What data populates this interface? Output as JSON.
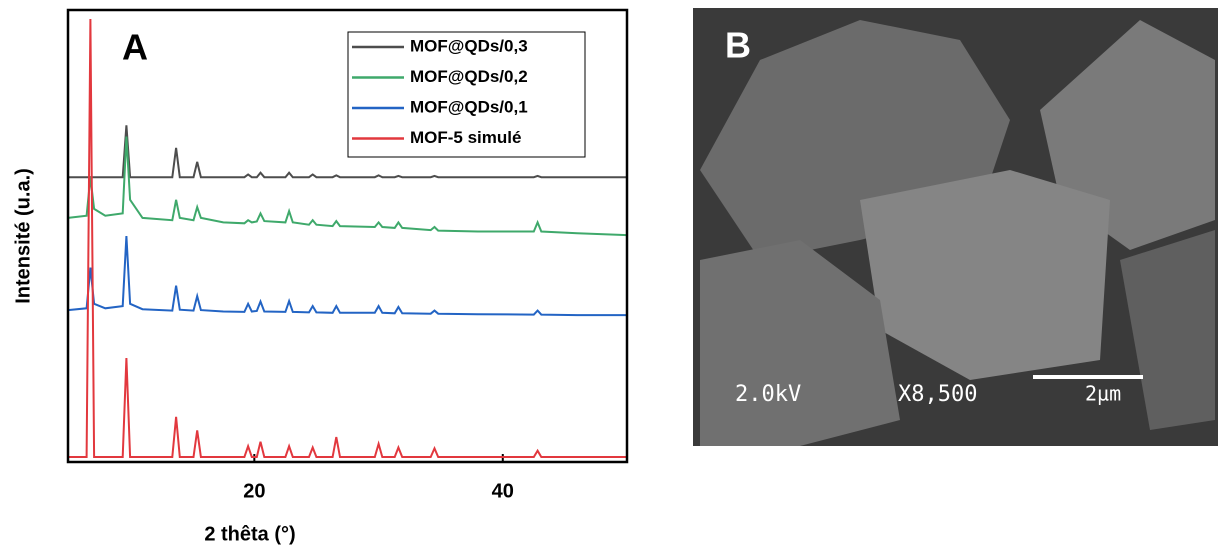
{
  "chart_data": {
    "type": "line",
    "annotation": "A",
    "xlabel": "2 thêta (°)",
    "ylabel": "Intensité (u.a.)",
    "xlim": [
      5,
      50
    ],
    "xticks": [
      20,
      40
    ],
    "ylim": [
      0,
      100
    ],
    "legend": "upper right",
    "x": [
      5,
      6.5,
      6.8,
      7.1,
      8,
      9.4,
      9.7,
      10,
      11,
      13.4,
      13.7,
      14,
      15.1,
      15.4,
      15.7,
      17.5,
      19.2,
      19.5,
      19.8,
      20.2,
      20.5,
      20.8,
      22.5,
      22.8,
      23.1,
      24.4,
      24.7,
      25,
      26.3,
      26.6,
      26.9,
      29.7,
      30,
      30.3,
      31.3,
      31.6,
      31.9,
      34.2,
      34.5,
      34.8,
      38,
      42.5,
      42.8,
      43.1,
      46,
      50
    ],
    "series": [
      {
        "name": "MOF@QDs/0,3",
        "color": "#4d4d4d",
        "values": [
          63,
          63,
          63,
          63,
          63,
          63,
          74.5,
          63,
          63,
          63,
          69.5,
          63,
          63,
          66.4,
          63,
          63,
          63,
          63.6,
          63,
          63,
          64,
          63,
          63,
          64,
          63,
          63,
          63.6,
          63,
          63,
          63.4,
          63,
          63,
          63.4,
          63,
          63,
          63.3,
          63,
          63,
          63.3,
          63,
          63,
          63,
          63.3,
          63,
          63,
          63
        ]
      },
      {
        "name": "MOF@QDs/0,2",
        "color": "#3fa96b",
        "values": [
          54,
          54.5,
          63,
          56,
          54.5,
          55,
          72,
          58,
          54,
          53.5,
          58,
          54,
          53.5,
          56.4,
          54,
          53,
          52.8,
          53.5,
          53,
          53.2,
          55,
          53.3,
          53,
          55.5,
          53,
          52.5,
          53.5,
          52.5,
          52.2,
          53.3,
          52.2,
          52,
          53,
          52,
          51.8,
          53,
          51.8,
          51.3,
          52,
          51.2,
          51,
          51,
          53,
          51,
          50.6,
          50.2
        ]
      },
      {
        "name": "MOF@QDs/0,1",
        "color": "#2364c4",
        "values": [
          33.6,
          34,
          43,
          35,
          34,
          34.5,
          50,
          35,
          33.8,
          33.5,
          39,
          33.7,
          33.5,
          36.7,
          33.6,
          33.3,
          33.2,
          35,
          33.3,
          33.4,
          35.5,
          33.3,
          33.2,
          35.6,
          33.2,
          33.1,
          34.5,
          33.1,
          33,
          34.5,
          33,
          33,
          34.5,
          33,
          32.9,
          34.3,
          32.9,
          32.8,
          33.5,
          32.8,
          32.7,
          32.6,
          33.5,
          32.6,
          32.5,
          32.5
        ]
      },
      {
        "name": "MOF-5 simulé",
        "color": "#e2383e",
        "values": [
          1.1,
          1.1,
          98,
          1.1,
          1.1,
          1.1,
          23,
          1.1,
          1.1,
          1.1,
          10,
          1.1,
          1.1,
          7,
          1.1,
          1.1,
          1.1,
          3.5,
          1.1,
          1.1,
          4.5,
          1.1,
          1.1,
          3.5,
          1.1,
          1.1,
          3.2,
          1.1,
          1.1,
          5.5,
          1.1,
          1.1,
          4,
          1.1,
          1.1,
          3.2,
          1.1,
          1.1,
          3,
          1.1,
          1.1,
          1.1,
          2.5,
          1.1,
          1.1,
          1.1
        ]
      }
    ]
  },
  "panel_b": {
    "label": "B",
    "voltage": "2.0kV",
    "magnification": "X8,500",
    "scale": "2µm"
  }
}
